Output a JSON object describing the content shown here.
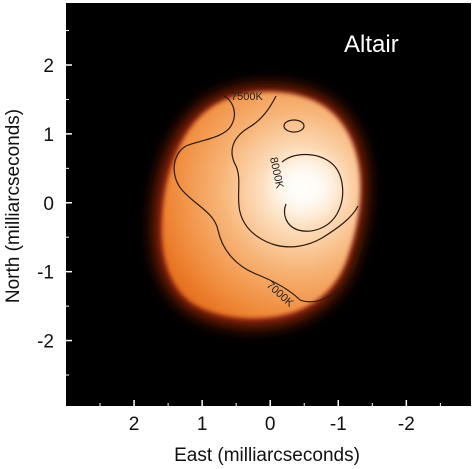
{
  "chart_data": {
    "type": "heatmap",
    "title": "Altair",
    "xlabel": "East (milliarcseconds)",
    "ylabel": "North (milliarcseconds)",
    "x_ticks": [
      2,
      1,
      0,
      -1,
      -2
    ],
    "x_tick_labels": [
      "2",
      "1",
      "0",
      "-1",
      "-2"
    ],
    "y_ticks": [
      2,
      1,
      0,
      -1,
      -2
    ],
    "y_tick_labels": [
      "2",
      "1",
      "0",
      "-1",
      "-2"
    ],
    "xlim": [
      3.0,
      -2.95
    ],
    "ylim": [
      -2.95,
      2.9
    ],
    "x_axis_reversed": true,
    "grid": false,
    "contours": [
      {
        "label": "7000K",
        "level_K": 7000
      },
      {
        "label": "7500K",
        "level_K": 7500
      },
      {
        "label": "8000K",
        "level_K": 8000
      }
    ],
    "colors": {
      "background": "#000000",
      "cool_edge": "#e8701e",
      "mid": "#f4a55c",
      "hot_center": "#fff7ec",
      "contour_line": "#2a1a10"
    }
  }
}
